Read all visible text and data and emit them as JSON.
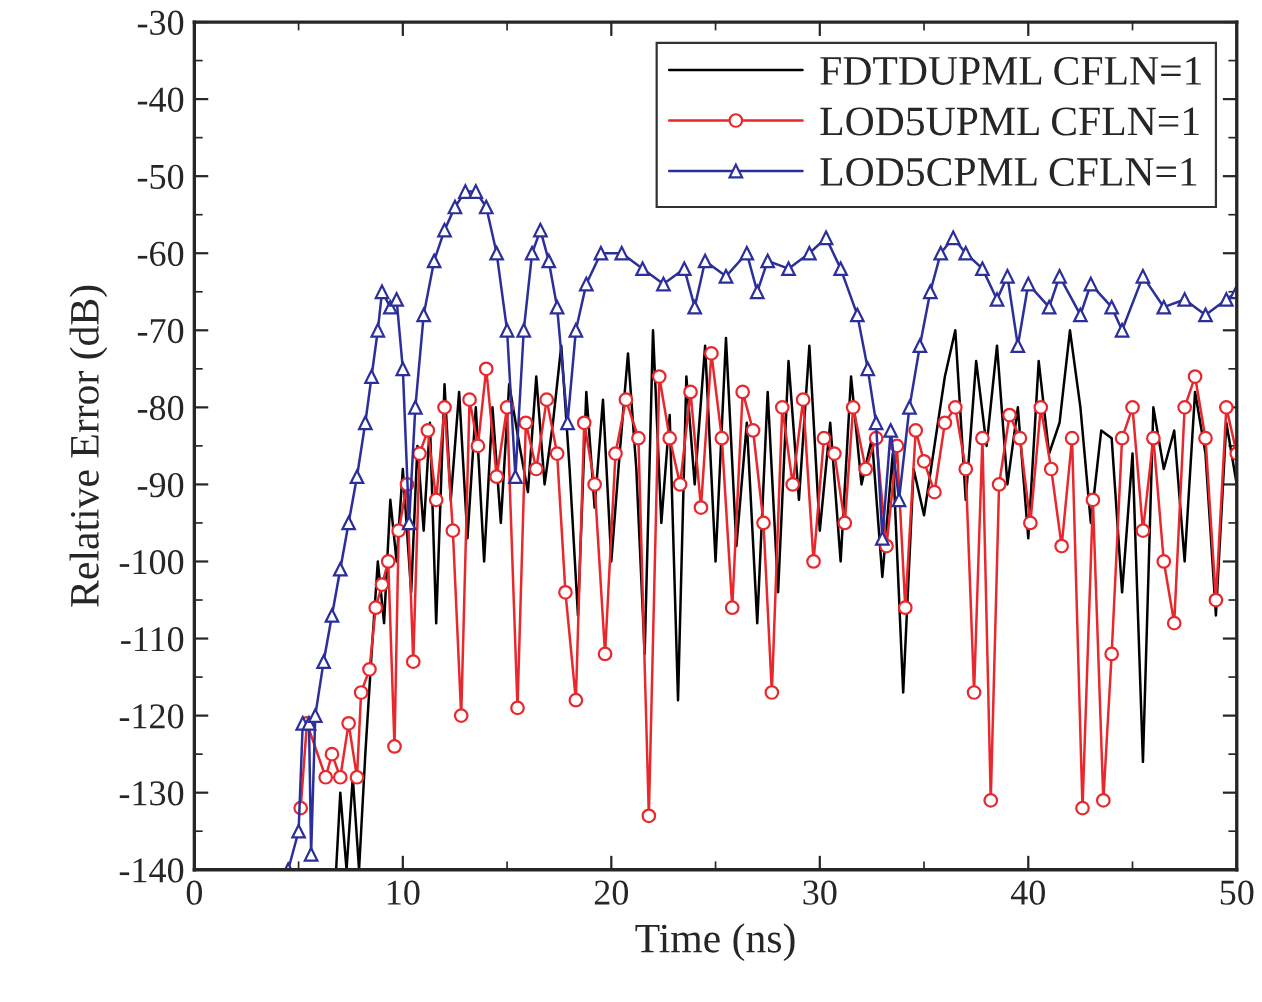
{
  "chart_data": {
    "type": "line",
    "xlabel": "Time (ns)",
    "ylabel": "Relative Error (dB)",
    "xlim": [
      0,
      50
    ],
    "xticks": [
      0,
      10,
      20,
      30,
      40,
      50
    ],
    "ylim": [
      -140,
      -30
    ],
    "yticks": [
      -140,
      -130,
      -120,
      -110,
      -100,
      -90,
      -80,
      -70,
      -60,
      -50,
      -40,
      -30
    ],
    "grid": false,
    "legend": "top right",
    "series": [
      {
        "name": "FDTDUPML CFLN=1",
        "color": "#000000",
        "marker": "none",
        "x": [
          5.8,
          6.8,
          7.0,
          7.3,
          7.6,
          7.9,
          8.2,
          8.5,
          8.8,
          9.1,
          9.4,
          9.7,
          10.0,
          10.4,
          10.7,
          11.0,
          11.3,
          11.6,
          12.0,
          12.3,
          12.7,
          13.1,
          13.5,
          13.9,
          14.3,
          14.7,
          15.1,
          15.6,
          16.0,
          16.4,
          16.8,
          17.2,
          17.6,
          18.0,
          18.4,
          18.8,
          19.2,
          19.6,
          20.0,
          20.4,
          20.8,
          21.2,
          21.6,
          22.0,
          22.4,
          22.8,
          23.2,
          23.6,
          24.0,
          24.5,
          25.0,
          25.5,
          26.0,
          26.5,
          27.0,
          27.5,
          28.0,
          28.5,
          29.0,
          29.5,
          30.0,
          30.5,
          31.0,
          31.5,
          32.0,
          32.5,
          33.0,
          33.5,
          34.0,
          34.5,
          35.0,
          35.5,
          36.0,
          36.5,
          37.0,
          37.5,
          38.0,
          38.5,
          39.0,
          39.5,
          40.0,
          40.5,
          41.0,
          41.5,
          42.0,
          42.5,
          43.0,
          43.5,
          44.0,
          44.5,
          45.0,
          45.5,
          46.0,
          46.5,
          47.0,
          47.5,
          48.0,
          48.5,
          49.0,
          49.5,
          50.0
        ],
        "values": [
          -140,
          -140,
          -130,
          -140,
          -128,
          -140,
          -125,
          -112,
          -100,
          -108,
          -92,
          -100,
          -88,
          -104,
          -85,
          -96,
          -82,
          -108,
          -77,
          -92,
          -78,
          -97,
          -80,
          -100,
          -80,
          -95,
          -77,
          -85,
          -91,
          -76,
          -90,
          -82,
          -72,
          -88,
          -107,
          -78,
          -93,
          -79,
          -100,
          -86,
          -73,
          -88,
          -112,
          -70,
          -95,
          -81,
          -118,
          -76,
          -90,
          -72,
          -100,
          -71,
          -98,
          -82,
          -108,
          -78,
          -104,
          -74,
          -92,
          -72,
          -96,
          -82,
          -100,
          -76,
          -90,
          -84,
          -102,
          -86,
          -117,
          -88,
          -94,
          -85,
          -76,
          -70,
          -92,
          -74,
          -85,
          -72,
          -90,
          -80,
          -97,
          -74,
          -86,
          -82,
          -70,
          -80,
          -95,
          -83,
          -84,
          -104,
          -86,
          -126,
          -80,
          -88,
          -83,
          -100,
          -78,
          -86,
          -107,
          -82,
          -90
        ]
      },
      {
        "name": "LOD5UPML CFLN=1",
        "color": "#e8282d",
        "marker": "circle",
        "x": [
          5.1,
          5.4,
          6.3,
          6.6,
          7.0,
          7.4,
          7.8,
          8.0,
          8.4,
          8.7,
          9.0,
          9.3,
          9.6,
          9.8,
          10.2,
          10.5,
          10.8,
          11.2,
          11.6,
          12.0,
          12.4,
          12.8,
          13.2,
          13.6,
          14.0,
          14.5,
          15.0,
          15.5,
          15.9,
          16.4,
          16.9,
          17.4,
          17.8,
          18.3,
          18.7,
          19.2,
          19.7,
          20.2,
          20.7,
          21.3,
          21.8,
          22.3,
          22.8,
          23.3,
          23.8,
          24.3,
          24.8,
          25.3,
          25.8,
          26.3,
          26.8,
          27.3,
          27.7,
          28.2,
          28.7,
          29.2,
          29.7,
          30.2,
          30.7,
          31.2,
          31.6,
          32.2,
          32.7,
          33.2,
          33.7,
          34.1,
          34.6,
          35.0,
          35.5,
          36.0,
          36.5,
          37.0,
          37.4,
          37.8,
          38.2,
          38.6,
          39.1,
          39.6,
          40.1,
          40.6,
          41.1,
          41.6,
          42.1,
          42.6,
          43.1,
          43.6,
          44.0,
          44.5,
          45.0,
          45.5,
          46.0,
          46.5,
          47.0,
          47.5,
          48.0,
          48.5,
          49.0,
          49.5,
          50.0
        ],
        "values": [
          -132,
          -121,
          -128,
          -125,
          -128,
          -121,
          -128,
          -117,
          -114,
          -106,
          -103,
          -100,
          -124,
          -96,
          -90,
          -113,
          -86,
          -83,
          -92,
          -80,
          -96,
          -120,
          -79,
          -85,
          -75,
          -89,
          -80,
          -119,
          -82,
          -88,
          -79,
          -86,
          -104,
          -118,
          -82,
          -90,
          -112,
          -86,
          -79,
          -84,
          -133,
          -76,
          -84,
          -90,
          -78,
          -93,
          -73,
          -84,
          -106,
          -78,
          -83,
          -95,
          -117,
          -80,
          -90,
          -79,
          -100,
          -84,
          -86,
          -95,
          -80,
          -88,
          -84,
          -98,
          -85,
          -106,
          -83,
          -87,
          -91,
          -82,
          -80,
          -88,
          -117,
          -84,
          -131,
          -90,
          -81,
          -84,
          -95,
          -80,
          -88,
          -98,
          -84,
          -132,
          -92,
          -131,
          -112,
          -84,
          -80,
          -96,
          -84,
          -100,
          -108,
          -80,
          -76,
          -84,
          -105,
          -80,
          -86
        ]
      },
      {
        "name": "LOD5CPML CFLN=1",
        "color": "#2b2f9a",
        "marker": "triangle",
        "x": [
          4.5,
          5.0,
          5.2,
          5.5,
          5.6,
          5.8,
          6.2,
          6.6,
          7.0,
          7.4,
          7.8,
          8.2,
          8.5,
          8.8,
          9.0,
          9.4,
          9.7,
          10.0,
          10.3,
          10.6,
          11.0,
          11.5,
          12.0,
          12.5,
          13.0,
          13.5,
          14.0,
          14.5,
          15.0,
          15.4,
          15.8,
          16.2,
          16.6,
          17.0,
          17.4,
          17.9,
          18.3,
          18.8,
          19.5,
          20.5,
          21.5,
          22.5,
          23.5,
          24.0,
          24.5,
          25.5,
          26.5,
          27.0,
          27.5,
          28.5,
          29.5,
          30.3,
          31.0,
          31.8,
          32.3,
          32.7,
          33.0,
          33.4,
          33.8,
          34.3,
          34.8,
          35.3,
          35.8,
          36.4,
          37.0,
          37.8,
          38.5,
          39.0,
          39.5,
          40.0,
          41.0,
          41.5,
          42.5,
          43.0,
          44.0,
          44.5,
          45.5,
          46.5,
          47.5,
          48.5,
          49.5,
          50.0
        ],
        "values": [
          -140,
          -135,
          -121,
          -121,
          -138,
          -120,
          -113,
          -107,
          -101,
          -95,
          -89,
          -82,
          -76,
          -70,
          -65,
          -67,
          -66,
          -75,
          -95,
          -80,
          -68,
          -61,
          -57,
          -54,
          -52,
          -52,
          -54,
          -60,
          -70,
          -89,
          -70,
          -60,
          -57,
          -61,
          -67,
          -82,
          -70,
          -64,
          -60,
          -60,
          -62,
          -64,
          -62,
          -67,
          -61,
          -63,
          -60,
          -65,
          -61,
          -62,
          -60,
          -58,
          -62,
          -68,
          -75,
          -82,
          -97,
          -83,
          -92,
          -80,
          -72,
          -65,
          -60,
          -58,
          -60,
          -62,
          -66,
          -63,
          -72,
          -64,
          -67,
          -63,
          -68,
          -64,
          -67,
          -70,
          -63,
          -67,
          -66,
          -68,
          -66,
          -65
        ]
      }
    ]
  }
}
